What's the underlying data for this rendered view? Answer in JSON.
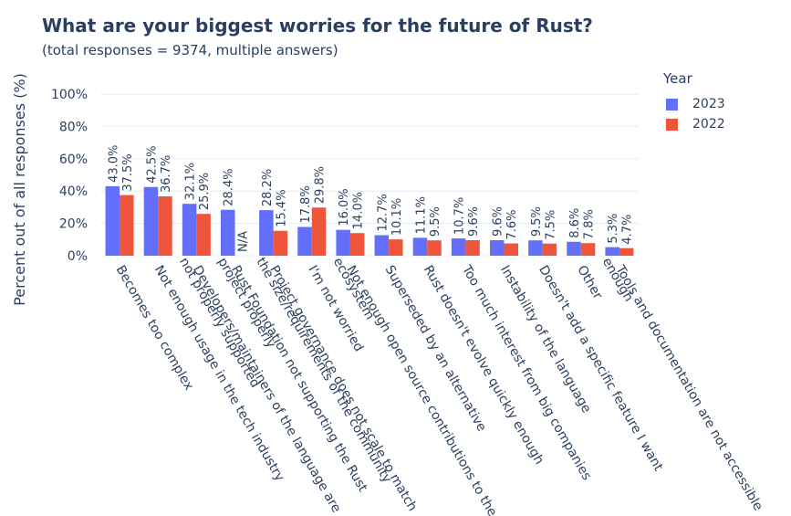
{
  "chart_data": {
    "type": "bar",
    "title": "What are your biggest worries for the future of Rust?",
    "subtitle": "(total responses = 9374, multiple answers)",
    "ylabel": "Percent out of all responses (%)",
    "xlabel": "",
    "ylim": [
      0,
      100
    ],
    "yticks": [
      "0%",
      "20%",
      "40%",
      "60%",
      "80%",
      "100%"
    ],
    "legend_title": "Year",
    "legend_position": "top-right",
    "categories": [
      [
        "Becomes too complex"
      ],
      [
        "Not enough usage in the tech industry"
      ],
      [
        "Developers/maintainers of the language are",
        "not properly supported"
      ],
      [
        "Rust Foundation not supporting the Rust",
        "project properly"
      ],
      [
        "Project governance does not scale to match",
        "the size/requirements of the community"
      ],
      [
        "I'm not worried"
      ],
      [
        "Not enough open source contributions to the",
        "ecosystem"
      ],
      [
        "Superseded by an alternative"
      ],
      [
        "Rust doesn't evolve quickly enough"
      ],
      [
        "Too much interest from big companies"
      ],
      [
        "Instability of the language"
      ],
      [
        "Doesn't add a specific feature I want"
      ],
      [
        "Other"
      ],
      [
        "Tools and documentation are not accessible",
        "enough"
      ]
    ],
    "series": [
      {
        "name": "2023",
        "color": "#636efa",
        "values": [
          43.0,
          42.5,
          32.1,
          28.4,
          28.2,
          17.8,
          16.0,
          12.7,
          11.1,
          10.7,
          9.6,
          9.5,
          8.6,
          5.3
        ],
        "labels": [
          "43.0%",
          "42.5%",
          "32.1%",
          "28.4%",
          "28.2%",
          "17.8%",
          "16.0%",
          "12.7%",
          "11.1%",
          "10.7%",
          "9.6%",
          "9.5%",
          "8.6%",
          "5.3%"
        ]
      },
      {
        "name": "2022",
        "color": "#ef553b",
        "values": [
          37.5,
          36.7,
          25.9,
          null,
          15.4,
          29.8,
          14.0,
          10.1,
          9.5,
          9.6,
          7.6,
          7.5,
          7.8,
          4.7
        ],
        "labels": [
          "37.5%",
          "36.7%",
          "25.9%",
          "N/A",
          "15.4%",
          "29.8%",
          "14.0%",
          "10.1%",
          "9.5%",
          "9.6%",
          "7.6%",
          "7.5%",
          "7.8%",
          "4.7%"
        ]
      }
    ]
  }
}
